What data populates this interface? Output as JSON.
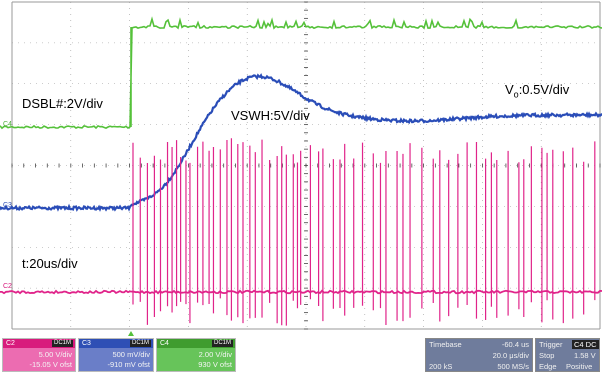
{
  "annotations": {
    "dsbl": "DSBL#:2V/div",
    "vswh": "VSWH:5V/div",
    "vo_main": "V",
    "vo_sub": "o",
    "vo_scale": ":0.5V/div",
    "time": "t:20us/div"
  },
  "channel_markers": {
    "c4": "C4",
    "c3": "C3",
    "c2": "C2"
  },
  "channels": [
    {
      "id": "C2",
      "coupling": "DC1M",
      "scale": "5.00 V/div",
      "offset": "-15.05 V ofst",
      "color": "#d81b7d"
    },
    {
      "id": "C3",
      "coupling": "DC1M",
      "scale": "500 mV/div",
      "offset": "-910 mV ofst",
      "color": "#2e4fb5"
    },
    {
      "id": "C4",
      "coupling": "DC1M",
      "scale": "2.00 V/div",
      "offset": "930 V ofst",
      "color": "#4caf3a"
    }
  ],
  "timebase": {
    "label": "Timebase",
    "delay": "-60.4 us",
    "per_div": "20.0 μs/div",
    "samples": "200 kS",
    "rate": "500 MS/s"
  },
  "trigger": {
    "label": "Trigger",
    "source": "C4 DC",
    "mode": "Stop",
    "level": "1.58 V",
    "type": "Edge",
    "slope": "Positive"
  },
  "colors": {
    "dsbl_trace": "#55c13a",
    "vo_trace": "#2a4db8",
    "vswh_trace": "#e0248a",
    "grid": "#9a9a9a",
    "status_box": "#6f7c9c"
  }
}
